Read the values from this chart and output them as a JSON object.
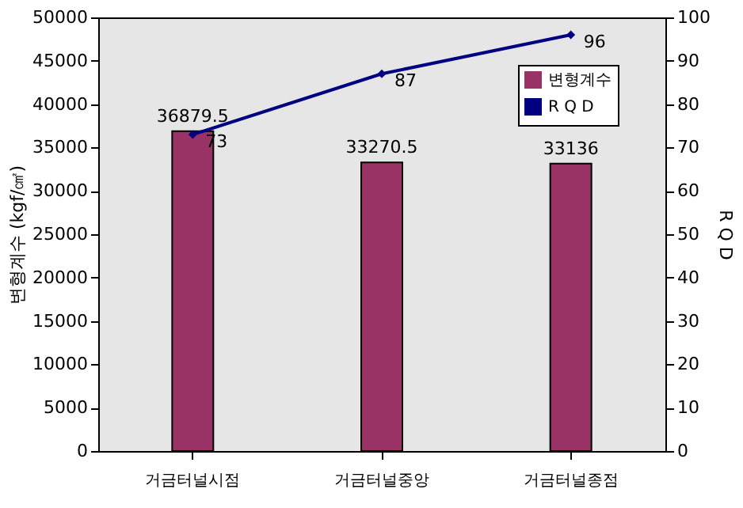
{
  "chart_data": {
    "type": "bar",
    "categories": [
      "거금터널시점",
      "거금터널중앙",
      "거금터널종점"
    ],
    "series": [
      {
        "name": "변형계수",
        "color": "#993366",
        "values": [
          36879.5,
          33270.5,
          33136
        ]
      },
      {
        "name": "R Q D",
        "type": "line",
        "axis": "y2",
        "color": "#000080",
        "values": [
          73,
          87,
          96
        ],
        "marker": "diamond"
      }
    ],
    "ylabel": "변형계수 (kgf/㎠)",
    "y2label": "R Q D",
    "ylim": [
      0,
      50000
    ],
    "yticks": [
      0,
      5000,
      10000,
      15000,
      20000,
      25000,
      30000,
      35000,
      40000,
      45000,
      50000
    ],
    "y2lim": [
      0,
      100
    ],
    "y2ticks": [
      0,
      10,
      20,
      30,
      40,
      50,
      60,
      70,
      80,
      90,
      100
    ],
    "data_labels": true,
    "legend": "top right",
    "grid": false
  }
}
